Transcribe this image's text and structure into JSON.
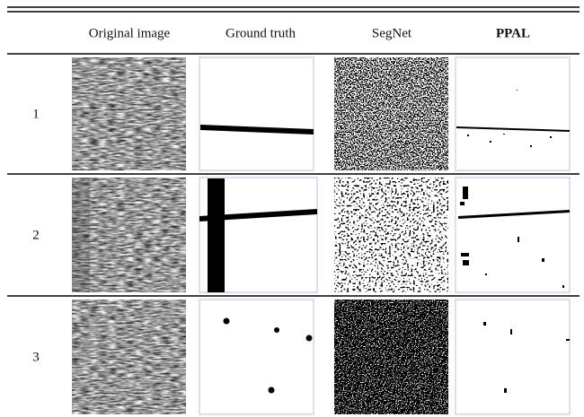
{
  "table": {
    "columns": [
      "Original image",
      "Ground truth",
      "SegNet",
      "PPAL"
    ],
    "rows": [
      "1",
      "2",
      "3"
    ]
  }
}
